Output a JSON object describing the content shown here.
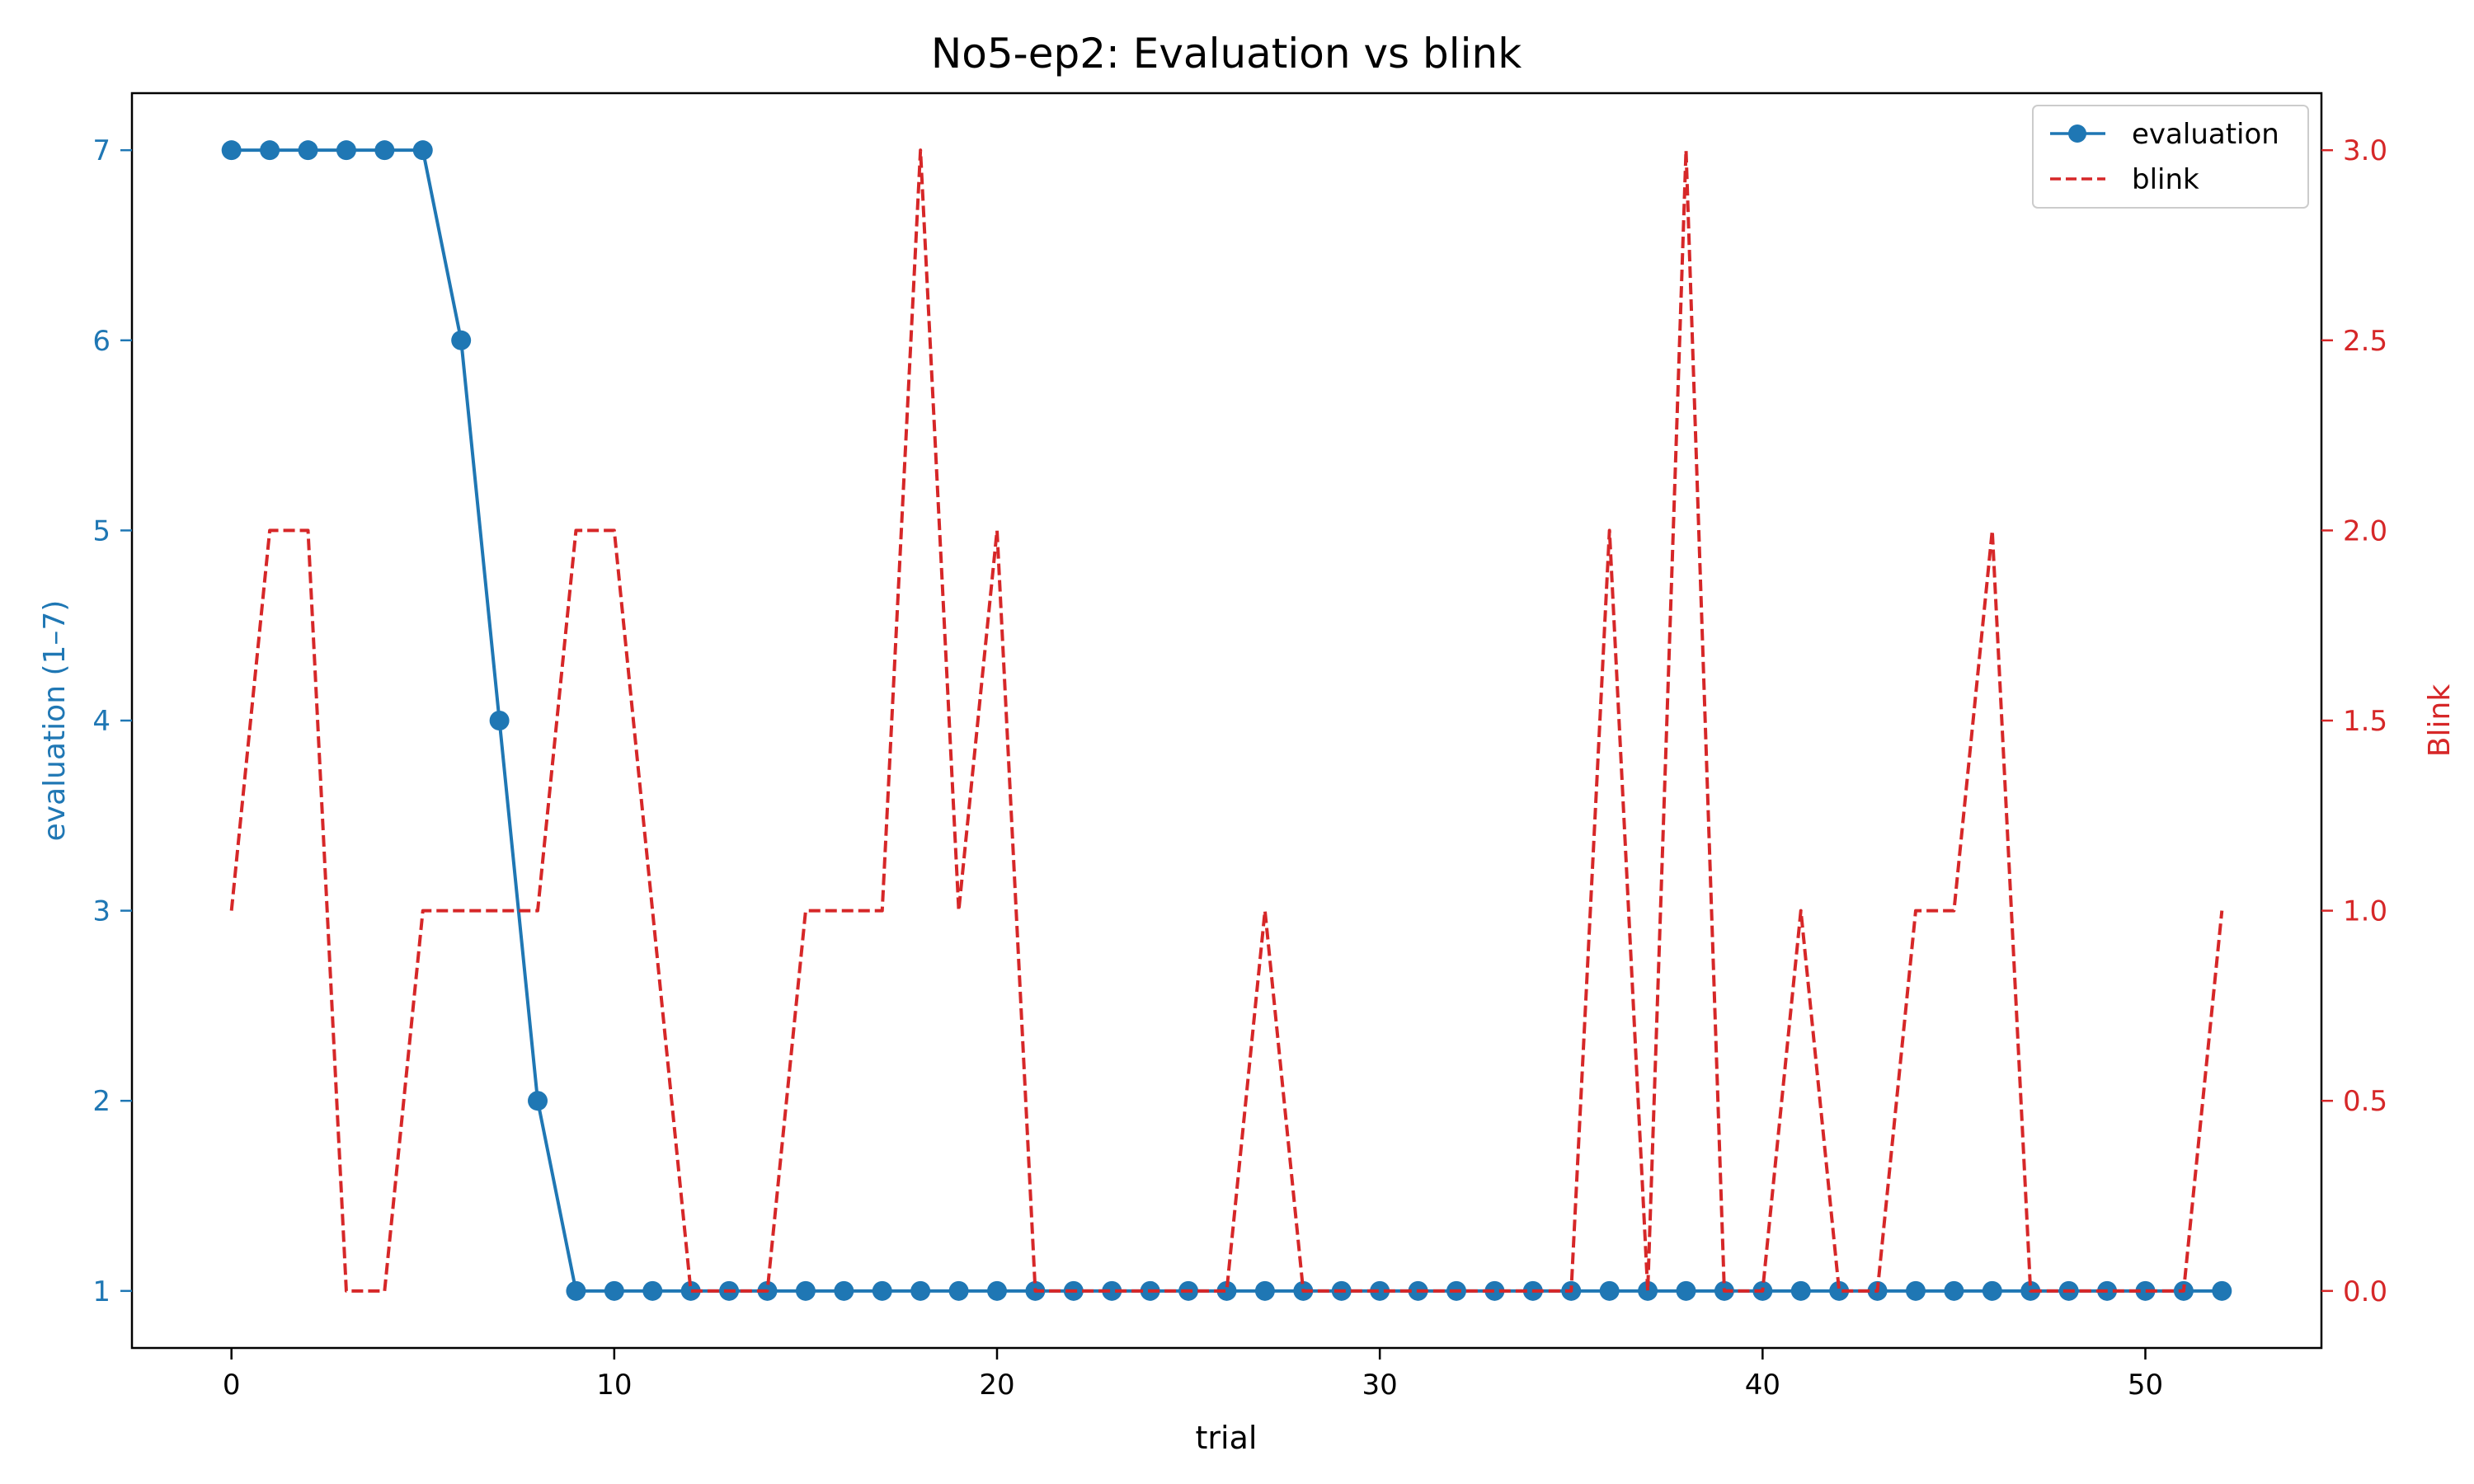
{
  "chart_data": {
    "type": "line",
    "title": "No5-ep2: Evaluation vs blink",
    "xlabel": "trial",
    "ylabel_left": "evaluation (1–7)",
    "ylabel_right": "Blink",
    "xlim": [
      -2.6,
      54.6
    ],
    "ylim_left": [
      0.7,
      7.3
    ],
    "ylim_right": [
      -0.15,
      3.15
    ],
    "x_ticks": [
      0,
      10,
      20,
      30,
      40,
      50
    ],
    "y_ticks_left": [
      1,
      2,
      3,
      4,
      5,
      6,
      7
    ],
    "y_ticks_right": [
      "0.0",
      "0.5",
      "1.0",
      "1.5",
      "2.0",
      "2.5",
      "3.0"
    ],
    "grid": false,
    "legend_position": "top-right",
    "x": [
      0,
      1,
      2,
      3,
      4,
      5,
      6,
      7,
      8,
      9,
      10,
      11,
      12,
      13,
      14,
      15,
      16,
      17,
      18,
      19,
      20,
      21,
      22,
      23,
      24,
      25,
      26,
      27,
      28,
      29,
      30,
      31,
      32,
      33,
      34,
      35,
      36,
      37,
      38,
      39,
      40,
      41,
      42,
      43,
      44,
      45,
      46,
      47,
      48,
      49,
      50,
      51,
      52
    ],
    "series": [
      {
        "name": "evaluation",
        "axis": "left",
        "color": "#1f77b4",
        "style": "solid",
        "marker": "circle",
        "values": [
          7,
          7,
          7,
          7,
          7,
          7,
          6,
          4,
          2,
          1,
          1,
          1,
          1,
          1,
          1,
          1,
          1,
          1,
          1,
          1,
          1,
          1,
          1,
          1,
          1,
          1,
          1,
          1,
          1,
          1,
          1,
          1,
          1,
          1,
          1,
          1,
          1,
          1,
          1,
          1,
          1,
          1,
          1,
          1,
          1,
          1,
          1,
          1,
          1,
          1,
          1,
          1,
          1
        ]
      },
      {
        "name": "blink",
        "axis": "right",
        "color": "#d62728",
        "style": "dashed",
        "marker": "none",
        "values": [
          1,
          2,
          2,
          0,
          0,
          1,
          1,
          1,
          1,
          2,
          2,
          1,
          0,
          0,
          0,
          1,
          1,
          1,
          3,
          1,
          2,
          0,
          0,
          0,
          0,
          0,
          0,
          1,
          0,
          0,
          0,
          0,
          0,
          0,
          0,
          0,
          2,
          0,
          3,
          0,
          0,
          1,
          0,
          0,
          1,
          1,
          2,
          0,
          0,
          0,
          0,
          0,
          1
        ]
      }
    ]
  }
}
